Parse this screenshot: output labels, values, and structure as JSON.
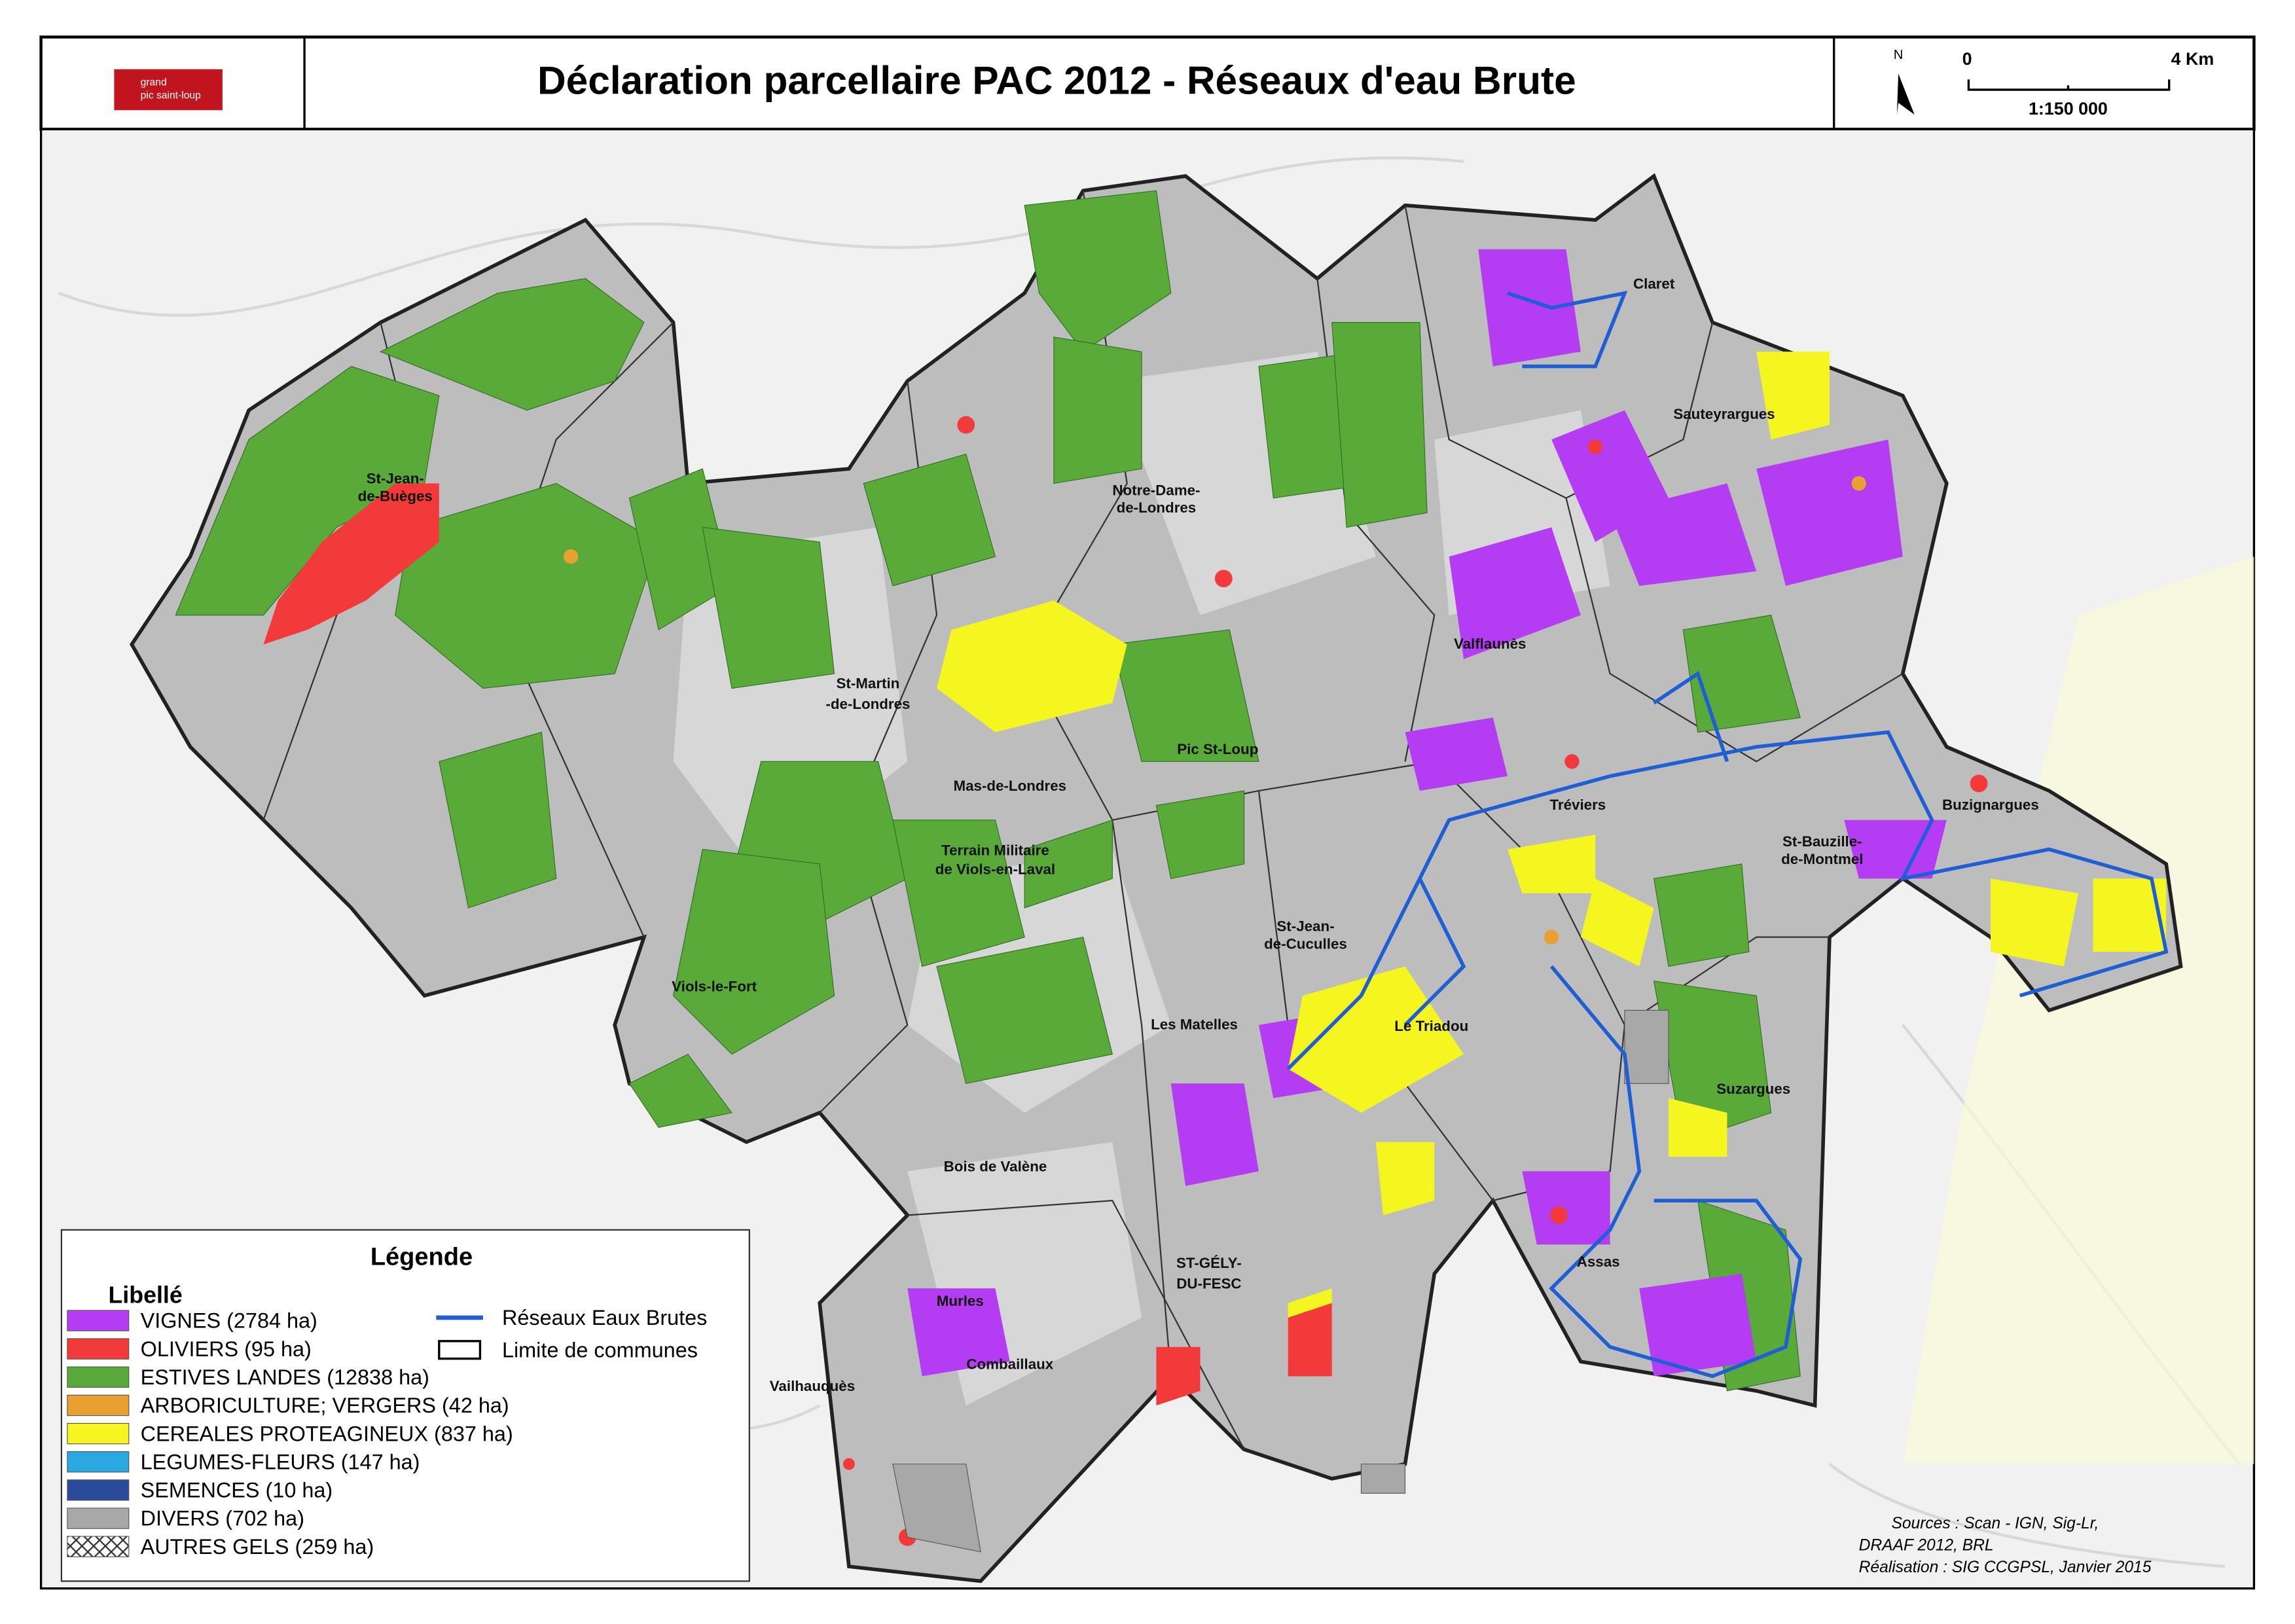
{
  "header": {
    "title": "Déclaration parcellaire PAC 2012 - Réseaux d'eau Brute",
    "logo": [
      "grand",
      "pic saint-loup"
    ]
  },
  "scale": {
    "north": "N",
    "start": "0",
    "end": "4 Km",
    "ratio": "1:150 000"
  },
  "legend": {
    "title": "Légende",
    "subtitle": "Libellé",
    "items": [
      {
        "label": "VIGNES (2784 ha)",
        "color": "#b43cf2"
      },
      {
        "label": "OLIVIERS (95 ha)",
        "color": "#f23a3a"
      },
      {
        "label": "ESTIVES LANDES (12838 ha)",
        "color": "#58a83a"
      },
      {
        "label": "ARBORICULTURE; VERGERS (42 ha)",
        "color": "#e8a030"
      },
      {
        "label": "CEREALES PROTEAGINEUX (837 ha)",
        "color": "#f5f520"
      },
      {
        "label": "LEGUMES-FLEURS (147 ha)",
        "color": "#2aa8e0"
      },
      {
        "label": "SEMENCES (10 ha)",
        "color": "#2a4a9a"
      },
      {
        "label": "DIVERS (702 ha)",
        "color": "#a8a8a8"
      },
      {
        "label": "AUTRES GELS (259 ha)",
        "color": "hatch"
      }
    ],
    "lines": [
      {
        "label": "Réseaux Eaux Brutes",
        "color": "#1f5fd6"
      },
      {
        "label": "Limite de communes",
        "color": "#000000"
      }
    ]
  },
  "places": [
    "St-Martin",
    "-de-Londres",
    "Les Matelles",
    "ST-GÉLY-",
    "DU-FESC",
    "Viols-le-Fort",
    "Claret",
    "Valflaunès",
    "Notre-Dame-",
    "de-Londres",
    "St-Jean-",
    "de-Buèges",
    "Combaillaux",
    "Murles",
    "Tréviers",
    "Terrain Militaire",
    "de Viols-en-Laval",
    "St-Jean-",
    "de-Cuculles",
    "Pic St-Loup",
    "Bois de Valène",
    "Sauteyrargues",
    "St-Bauzille-",
    "de-Montmel",
    "Buzignargues",
    "Suzargues",
    "Assas",
    "Le Triadou",
    "Vailhauquès",
    "Mas-de-Londres"
  ],
  "sources": [
    "Sources : Scan - IGN, Sig-Lr,",
    "DRAAF 2012, BRL",
    "Réalisation : SIG CCGPSL, Janvier 2015"
  ]
}
